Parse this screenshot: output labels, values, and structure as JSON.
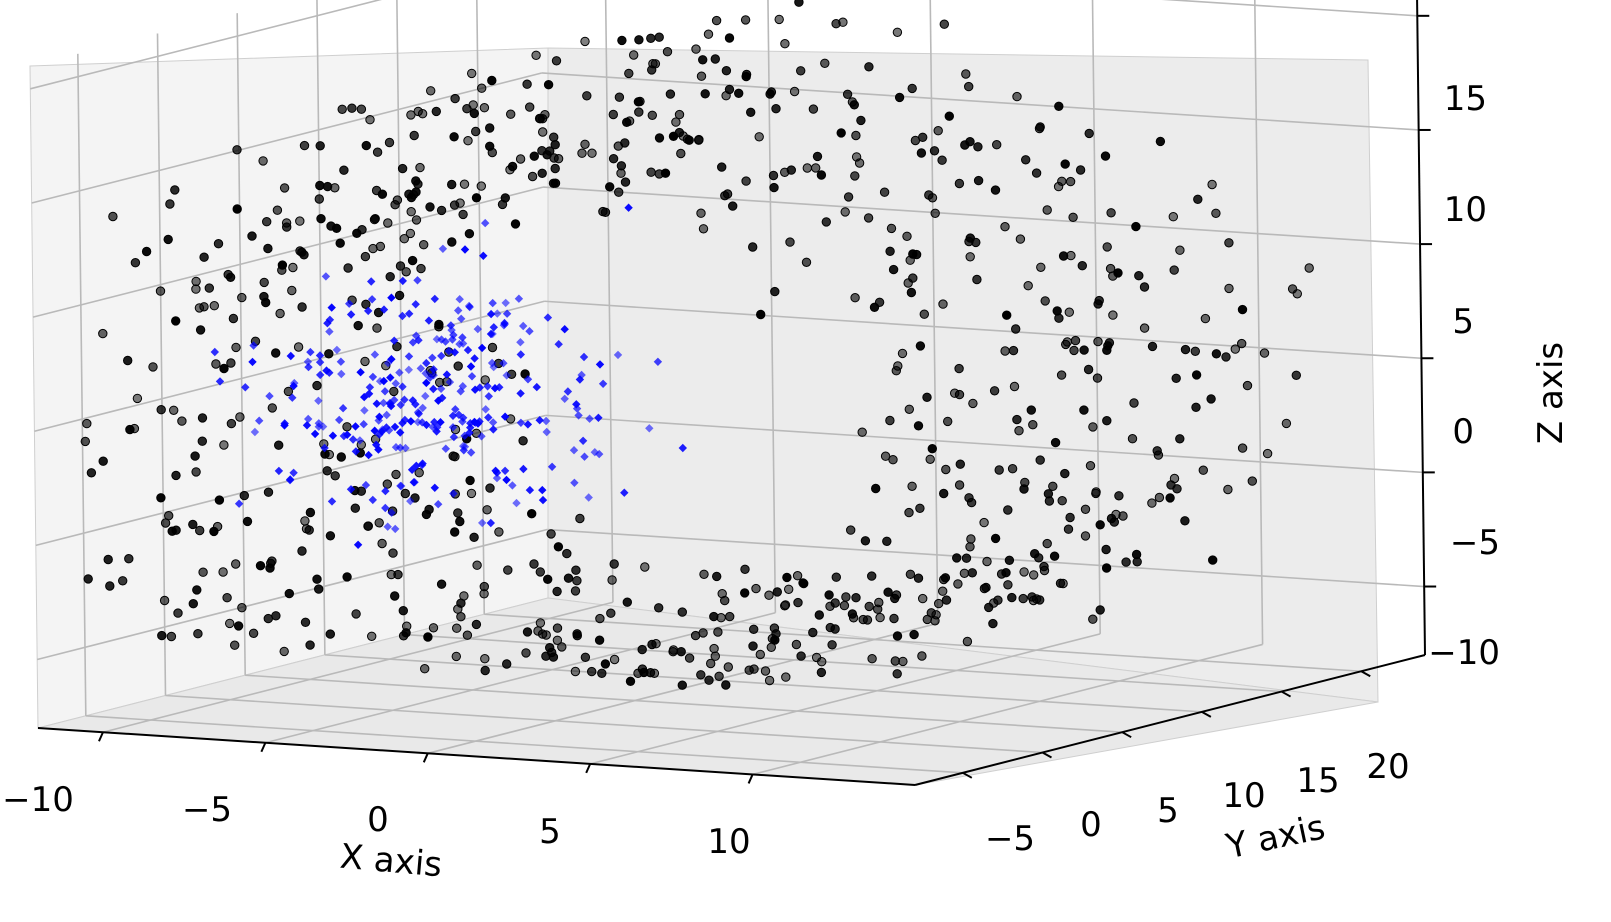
{
  "chart_data": {
    "type": "scatter",
    "projection": "3d",
    "title": "",
    "xlabel": "X axis",
    "ylabel": "Y axis",
    "zlabel": "Z axis",
    "xlim": [
      -12,
      15
    ],
    "ylim": [
      -8,
      24
    ],
    "zlim": [
      -13,
      16
    ],
    "x_ticks": [
      "−10",
      "−5",
      "0",
      "5",
      "10"
    ],
    "y_ticks": [
      "−5",
      "0",
      "5",
      "10",
      "15",
      "20"
    ],
    "z_ticks": [
      "−10",
      "−5",
      "0",
      "5",
      "10",
      "15"
    ],
    "grid": true,
    "series": [
      {
        "color": "#000000",
        "marker": "circle",
        "shape": "hollow cylinder",
        "values": {
          "r_range": [
            10,
            15
          ],
          "y_range": [
            -5,
            20
          ],
          "z_range": [
            -10,
            15
          ],
          "count": 850
        }
      },
      {
        "color": "#0000ff",
        "marker": "diamond",
        "shape": "gaussian blob",
        "values": {
          "center": [
            -4,
            1,
            1
          ],
          "spread": [
            2.5,
            2.5,
            2.5
          ],
          "count": 300
        }
      }
    ]
  }
}
